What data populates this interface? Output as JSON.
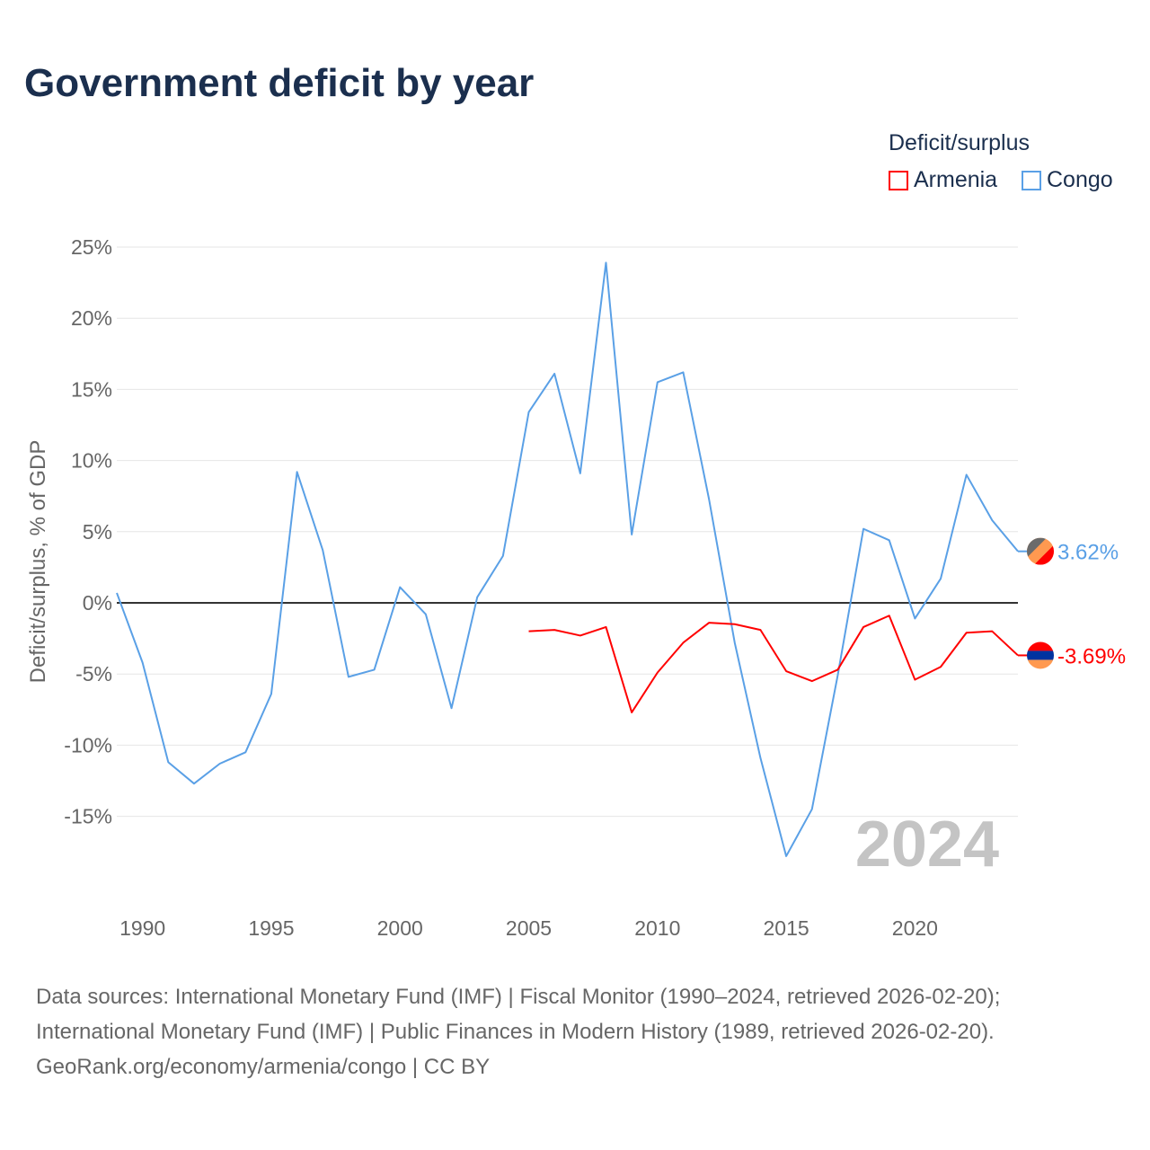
{
  "chart_data": {
    "type": "line",
    "title": "Government deficit by year",
    "ylabel": "Deficit/surplus, % of GDP",
    "xlabel": "",
    "legend_title": "Deficit/surplus",
    "legend_placement": "top-right",
    "xlim": [
      1989,
      2024
    ],
    "ylim": [
      -20,
      25
    ],
    "yticks": [
      25,
      20,
      15,
      10,
      5,
      0,
      -5,
      -10,
      -15
    ],
    "ytick_labels": [
      "25%",
      "20%",
      "15%",
      "10%",
      "5%",
      "0%",
      "-5%",
      "-10%",
      "-15%"
    ],
    "xticks": [
      1990,
      1995,
      2000,
      2005,
      2010,
      2015,
      2020
    ],
    "xtick_labels": [
      "1990",
      "1995",
      "2000",
      "2005",
      "2010",
      "2015",
      "2020"
    ],
    "grid": true,
    "annotation_year": "2024",
    "series": [
      {
        "name": "Armenia",
        "color": "#ff0000",
        "start_year": 2005,
        "values": [
          -2.0,
          -1.9,
          -2.3,
          -1.7,
          -7.7,
          -4.9,
          -2.8,
          -1.4,
          -1.5,
          -1.9,
          -4.8,
          -5.5,
          -4.7,
          -1.7,
          -0.9,
          -5.4,
          -4.5,
          -2.1,
          -2.0,
          -3.69
        ],
        "end_label": "-3.69%",
        "flag_colors": [
          "#ff0000",
          "#0033a0",
          "#ff9950"
        ]
      },
      {
        "name": "Congo",
        "color": "#5aa0e6",
        "start_year": 1989,
        "values": [
          0.7,
          -4.2,
          -11.2,
          -12.7,
          -11.3,
          -10.5,
          -6.4,
          9.2,
          3.7,
          -5.2,
          -4.7,
          1.1,
          -0.8,
          -7.4,
          0.4,
          3.3,
          13.4,
          16.1,
          9.1,
          23.9,
          4.8,
          15.5,
          16.2,
          7.3,
          -2.8,
          -10.9,
          -17.8,
          -14.5,
          -5.1,
          5.2,
          4.4,
          -1.1,
          1.7,
          9.0,
          5.8,
          3.62
        ],
        "end_label": "3.62%",
        "flag_colors": [
          "#6b6b6b",
          "#ff9950",
          "#ff0000"
        ]
      }
    ]
  },
  "footer": {
    "line1": "Data sources: International Monetary Fund (IMF) | Fiscal Monitor (1990–2024, retrieved 2026-02-20);",
    "line2": "International Monetary Fund (IMF) | Public Finances in Modern History (1989, retrieved 2026-02-20).",
    "line3": "GeoRank.org/economy/armenia/congo | CC BY"
  }
}
